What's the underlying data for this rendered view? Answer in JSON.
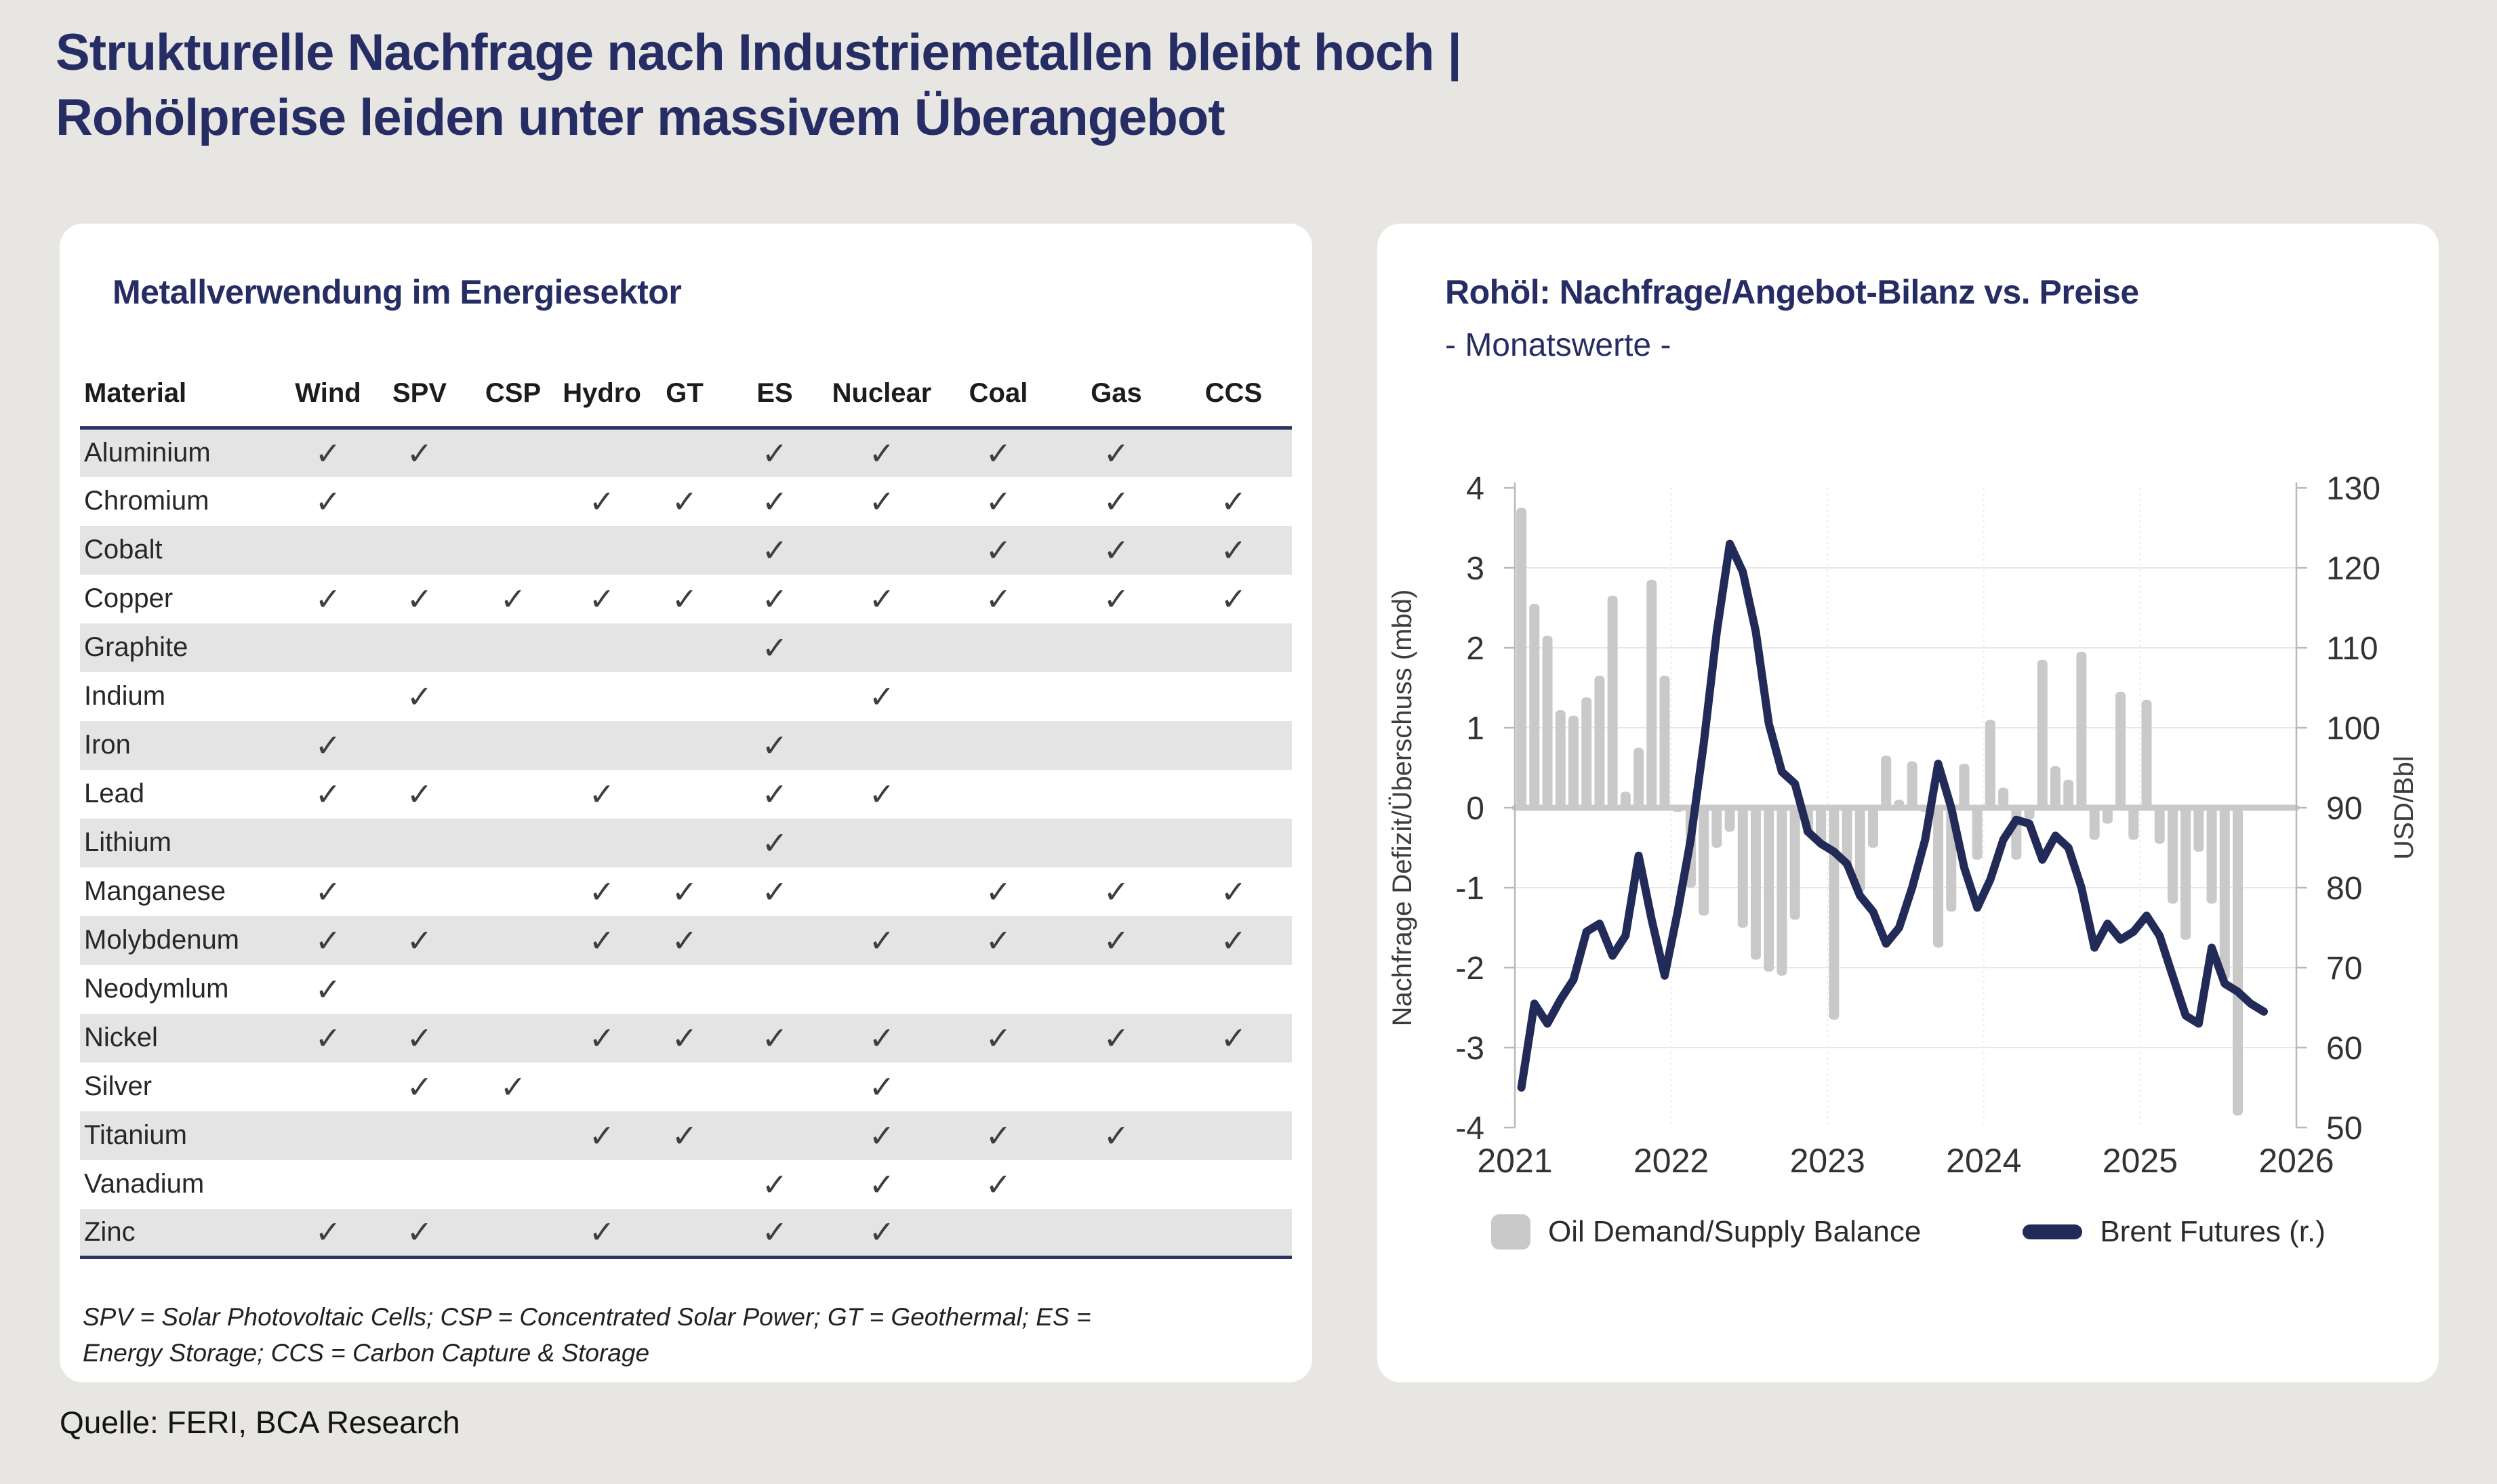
{
  "page": {
    "title_line1": "Strukturelle Nachfrage nach Industriemetallen bleibt hoch |",
    "title_line2": "Rohölpreise leiden unter massivem Überangebot",
    "source": "Quelle: FERI, BCA Research"
  },
  "colors": {
    "page_bg": "#e8e6e3",
    "card_bg": "#ffffff",
    "navy": "#262d64",
    "brent_line": "#222a58",
    "bar_grey": "#c9c9c9",
    "row_stripe": "#e4e4e4",
    "table_rule": "#2e3460"
  },
  "metals_panel": {
    "title": "Metallverwendung im Energiesektor",
    "check_glyph": "✓",
    "footnote": "SPV = Solar Photovoltaic Cells; CSP = Concentrated Solar Power; GT = Geothermal; ES = Energy Storage; CCS = Carbon Capture & Storage"
  },
  "oil_panel": {
    "title": "Rohöl: Nachfrage/Angebot-Bilanz vs. Preise",
    "subtitle": "- Monatswerte -",
    "legend": [
      {
        "label": "Oil Demand/Supply Balance",
        "swatch": "bar"
      },
      {
        "label": "Brent Futures (r.)",
        "swatch": "line"
      }
    ]
  },
  "chart_data": [
    {
      "type": "table",
      "title": "Metallverwendung im Energiesektor",
      "columns": [
        "Material",
        "Wind",
        "SPV",
        "CSP",
        "Hydro",
        "GT",
        "ES",
        "Nuclear",
        "Coal",
        "Gas",
        "CCS"
      ],
      "rows": [
        {
          "material": "Aluminium",
          "checks": [
            1,
            1,
            0,
            0,
            0,
            1,
            1,
            1,
            1,
            0
          ]
        },
        {
          "material": "Chromium",
          "checks": [
            1,
            0,
            0,
            1,
            1,
            1,
            1,
            1,
            1,
            1
          ]
        },
        {
          "material": "Cobalt",
          "checks": [
            0,
            0,
            0,
            0,
            0,
            1,
            0,
            1,
            1,
            1
          ]
        },
        {
          "material": "Copper",
          "checks": [
            1,
            1,
            1,
            1,
            1,
            1,
            1,
            1,
            1,
            1
          ]
        },
        {
          "material": "Graphite",
          "checks": [
            0,
            0,
            0,
            0,
            0,
            1,
            0,
            0,
            0,
            0
          ]
        },
        {
          "material": "Indium",
          "checks": [
            0,
            1,
            0,
            0,
            0,
            0,
            1,
            0,
            0,
            0
          ]
        },
        {
          "material": "Iron",
          "checks": [
            1,
            0,
            0,
            0,
            0,
            1,
            0,
            0,
            0,
            0
          ]
        },
        {
          "material": "Lead",
          "checks": [
            1,
            1,
            0,
            1,
            0,
            1,
            1,
            0,
            0,
            0
          ]
        },
        {
          "material": "Lithium",
          "checks": [
            0,
            0,
            0,
            0,
            0,
            1,
            0,
            0,
            0,
            0
          ]
        },
        {
          "material": "Manganese",
          "checks": [
            1,
            0,
            0,
            1,
            1,
            1,
            0,
            1,
            1,
            1
          ]
        },
        {
          "material": "Molybdenum",
          "checks": [
            1,
            1,
            0,
            1,
            1,
            0,
            1,
            1,
            1,
            1
          ]
        },
        {
          "material": "Neodymlum",
          "checks": [
            1,
            0,
            0,
            0,
            0,
            0,
            0,
            0,
            0,
            0
          ]
        },
        {
          "material": "Nickel",
          "checks": [
            1,
            1,
            0,
            1,
            1,
            1,
            1,
            1,
            1,
            1
          ]
        },
        {
          "material": "Silver",
          "checks": [
            0,
            1,
            1,
            0,
            0,
            0,
            1,
            0,
            0,
            0
          ]
        },
        {
          "material": "Titanium",
          "checks": [
            0,
            0,
            0,
            1,
            1,
            0,
            1,
            1,
            1,
            0
          ]
        },
        {
          "material": "Vanadium",
          "checks": [
            0,
            0,
            0,
            0,
            0,
            1,
            1,
            1,
            0,
            0
          ]
        },
        {
          "material": "Zinc",
          "checks": [
            1,
            1,
            0,
            1,
            0,
            1,
            1,
            0,
            0,
            0
          ]
        }
      ]
    },
    {
      "type": "bar+line",
      "title": "Rohöl: Nachfrage/Angebot-Bilanz vs. Preise",
      "subtitle": "- Monatswerte -",
      "start_month": "2021-01",
      "x_ticks": [
        "2021",
        "2022",
        "2023",
        "2024",
        "2025",
        "2026"
      ],
      "left_axis": {
        "label": "Nachfrage Defizit/Überschuss (mbd)",
        "min": -4,
        "max": 4,
        "ticks": [
          4,
          3,
          2,
          1,
          0,
          -1,
          -2,
          -3,
          -4
        ]
      },
      "right_axis": {
        "label": "USD/Bbl",
        "min": 50,
        "max": 130,
        "ticks": [
          130,
          120,
          110,
          100,
          90,
          80,
          70,
          60,
          50
        ]
      },
      "grid": true,
      "legend_position": "bottom",
      "series": [
        {
          "name": "Oil Demand/Supply Balance",
          "type": "bar",
          "axis": "left",
          "values": [
            3.75,
            2.55,
            2.15,
            1.22,
            1.15,
            1.38,
            1.65,
            2.65,
            0.2,
            0.75,
            2.85,
            1.65,
            -0.05,
            -1.0,
            -1.35,
            -0.5,
            -0.3,
            -1.5,
            -1.9,
            -2.05,
            -2.1,
            -1.4,
            -0.35,
            -0.45,
            -2.65,
            -0.75,
            -1.05,
            -0.5,
            0.65,
            0.1,
            0.58,
            -0.05,
            -1.75,
            -1.3,
            0.55,
            -0.65,
            1.1,
            0.25,
            -0.65,
            -0.15,
            1.85,
            0.52,
            0.35,
            1.95,
            -0.4,
            -0.2,
            1.45,
            -0.4,
            1.35,
            -0.45,
            -1.2,
            -1.65,
            -0.55,
            -1.2,
            -2.15,
            -3.85
          ]
        },
        {
          "name": "Brent Futures (r.)",
          "type": "line",
          "axis": "right",
          "values": [
            55,
            65.5,
            63,
            66,
            68.5,
            74.5,
            75.5,
            71.5,
            74,
            84,
            76,
            69,
            77,
            86,
            98,
            112,
            123,
            119.5,
            112,
            100.5,
            94.5,
            93,
            87,
            85.5,
            84.5,
            83,
            79,
            77,
            73,
            75,
            80,
            86,
            95.5,
            90,
            82.5,
            77.5,
            81,
            86,
            88.5,
            88,
            83.5,
            86.5,
            85,
            80,
            72.5,
            75.5,
            73.5,
            74.5,
            76.5,
            74,
            69,
            64,
            63,
            72.5,
            68,
            67,
            65.5,
            64.5
          ]
        }
      ]
    }
  ]
}
